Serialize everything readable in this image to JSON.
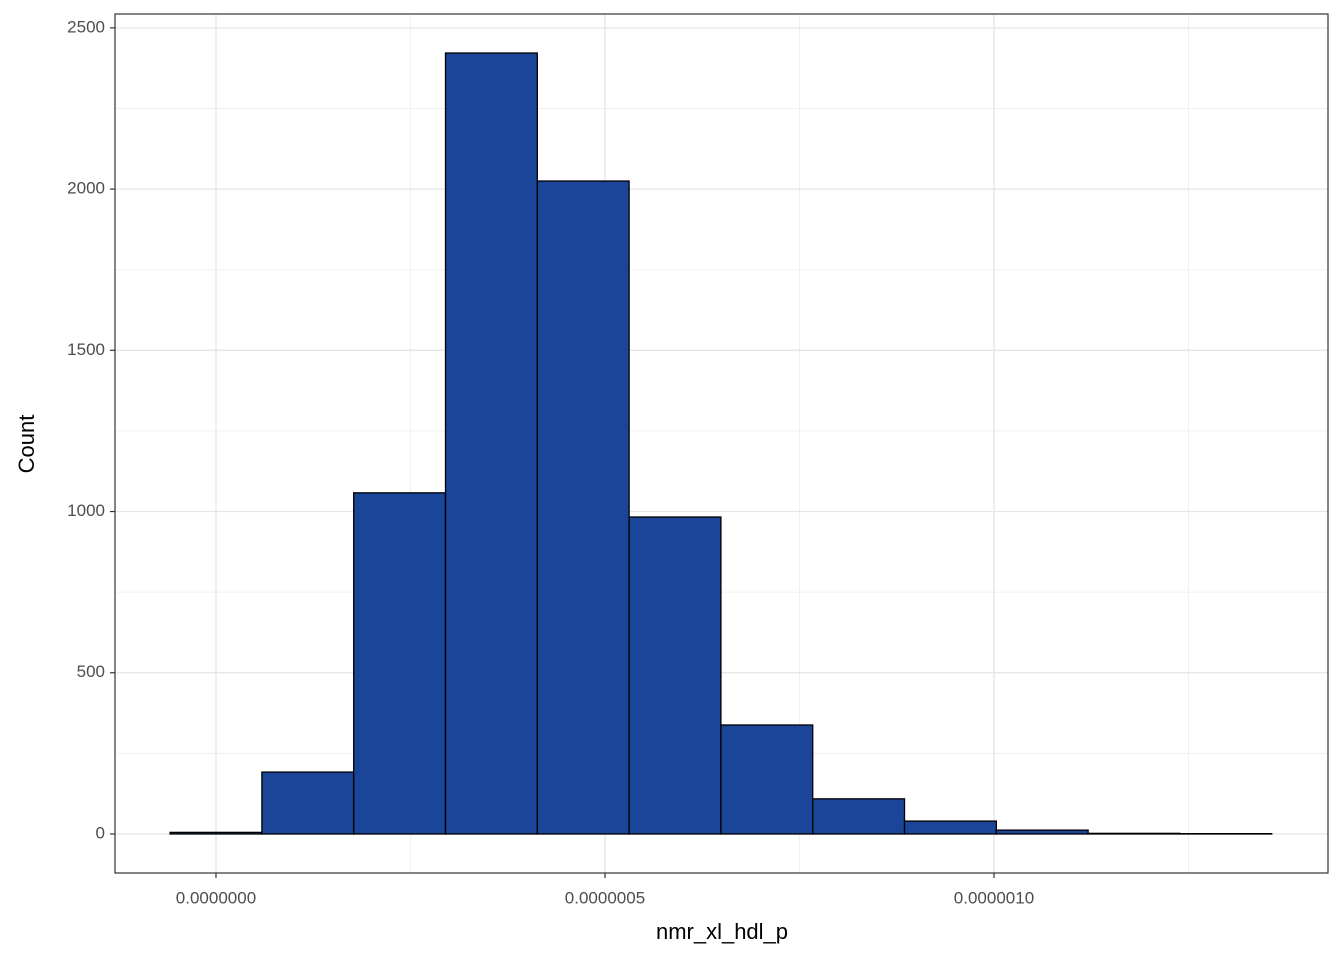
{
  "chart_data": {
    "type": "histogram",
    "x_label": "nmr_xl_hdl_p",
    "y_label": "Count",
    "bins": [
      -5.9e-08,
      5.9e-08,
      1.77e-07,
      2.95e-07,
      4.13e-07,
      5.31e-07,
      6.49e-07,
      7.67e-07,
      8.85e-07,
      1.003e-06,
      1.121e-06,
      1.239e-06,
      1.357e-06
    ],
    "values": [
      5,
      192,
      1058,
      2422,
      2025,
      983,
      338,
      109,
      40,
      12,
      2,
      1
    ],
    "color": "#1a4599",
    "edge_color": "#000000",
    "xlim": [
      -1.298e-07,
      1.4293e-06
    ],
    "ylim": [
      -121,
      2543
    ],
    "xticks": [
      {
        "value": 0,
        "label": "0.0000000"
      },
      {
        "value": 5e-07,
        "label": "0.0000005"
      },
      {
        "value": 1e-06,
        "label": "0.0000010"
      }
    ],
    "yticks": [
      0,
      500,
      1000,
      1500,
      2000,
      2500
    ],
    "x_minor_grid": [
      2.5e-07,
      7.5e-07,
      1.25e-06
    ],
    "y_minor_grid": [
      250,
      750,
      1250,
      1750,
      2250
    ],
    "grid": true
  }
}
